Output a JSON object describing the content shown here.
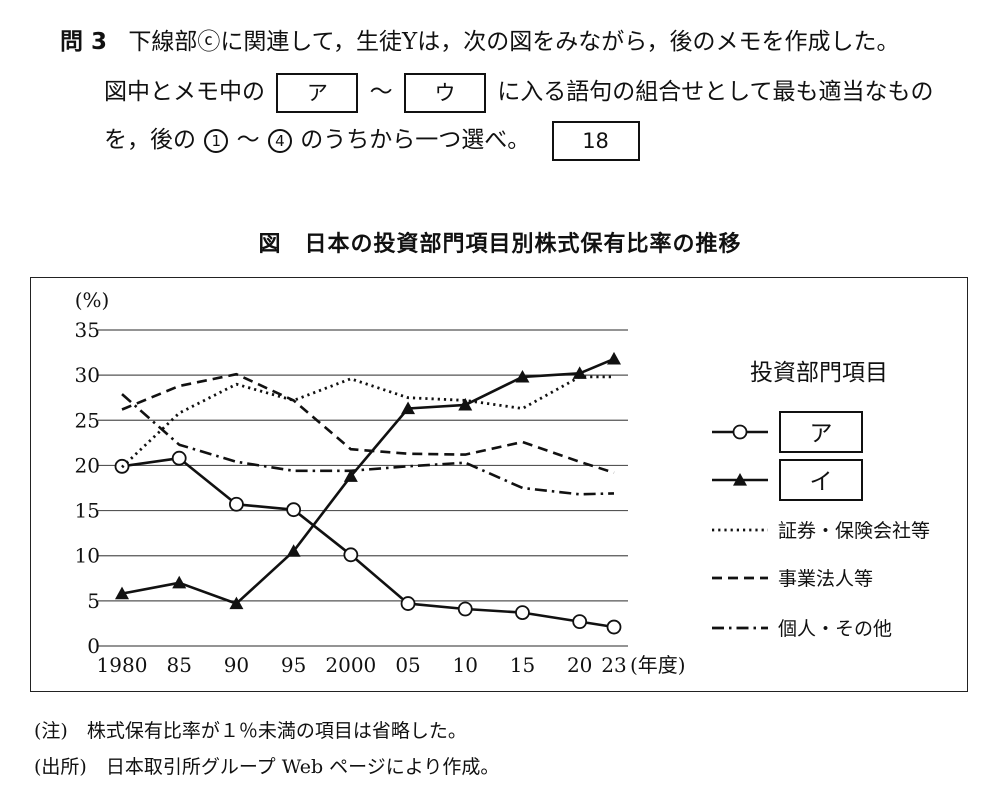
{
  "question": {
    "number": "問 3",
    "line1": "下線部ⓒに関連して，生徒Yは，次の図をみながら，後のメモを作成した。",
    "line2_a": "図中とメモ中の",
    "line2_tilde": "～",
    "line2_b": "に入る語句の組合せとして最も適当なもの",
    "box_a": "ア",
    "box_u": "ウ",
    "line3_a": "を，後の",
    "circ1": "1",
    "line3_tilde": "～",
    "circ4": "4",
    "line3_b": "のうちから一つ選べ。",
    "answer_box": "18"
  },
  "figure_title": "図　日本の投資部門項目別株式保有比率の推移",
  "legend": {
    "title": "投資部門項目",
    "box_a": "ア",
    "box_i": "イ",
    "securities": "証券・保険会社等",
    "corporations": "事業法人等",
    "individuals": "個人・その他"
  },
  "chart_data": {
    "type": "line",
    "title": "日本の投資部門項目別株式保有比率の推移",
    "xlabel": "(年度)",
    "ylabel": "(%)",
    "ylim": [
      0,
      35
    ],
    "yticks": [
      0,
      5,
      10,
      15,
      20,
      25,
      30,
      35
    ],
    "x": [
      1980,
      1985,
      1990,
      1995,
      2000,
      2005,
      2010,
      2015,
      2020,
      2023
    ],
    "x_tick_labels": [
      "1980",
      "85",
      "90",
      "95",
      "2000",
      "05",
      "10",
      "15",
      "20",
      "23"
    ],
    "grid": "horizontal",
    "legend_position": "right",
    "series": [
      {
        "name": "ア",
        "marker": "open-circle",
        "dash": "solid",
        "values": [
          19.9,
          20.8,
          15.7,
          15.1,
          10.1,
          4.7,
          4.1,
          3.7,
          2.7,
          2.1
        ]
      },
      {
        "name": "イ",
        "marker": "filled-triangle",
        "dash": "solid",
        "values": [
          5.8,
          7.0,
          4.7,
          10.5,
          18.8,
          26.3,
          26.7,
          29.8,
          30.2,
          31.8
        ]
      },
      {
        "name": "証券・保険会社等",
        "marker": "none",
        "dash": "dotted",
        "values": [
          19.8,
          25.8,
          29.0,
          27.2,
          29.6,
          27.5,
          27.2,
          26.3,
          29.8,
          29.8
        ]
      },
      {
        "name": "事業法人等",
        "marker": "none",
        "dash": "dashed",
        "values": [
          26.2,
          28.8,
          30.1,
          27.2,
          21.8,
          21.3,
          21.2,
          22.6,
          20.4,
          19.2
        ]
      },
      {
        "name": "個人・その他",
        "marker": "none",
        "dash": "dashdot",
        "values": [
          27.9,
          22.3,
          20.4,
          19.4,
          19.4,
          19.9,
          20.3,
          17.5,
          16.8,
          16.9
        ]
      }
    ]
  },
  "notes": {
    "note": "(注)　株式保有比率が１％未満の項目は省略した。",
    "source": "(出所)　日本取引所グループ Web ページにより作成。"
  }
}
